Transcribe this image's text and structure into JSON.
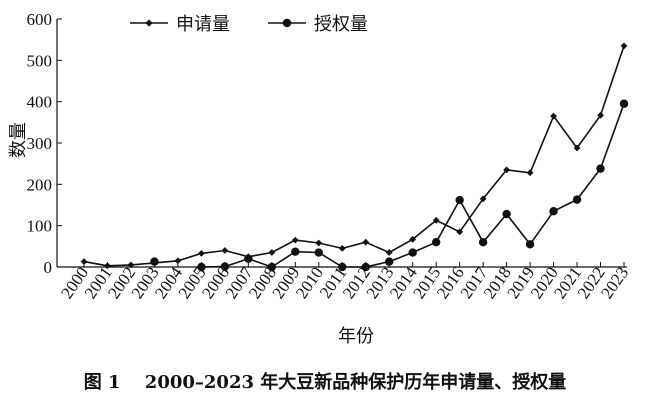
{
  "chart_data": {
    "type": "line",
    "categories": [
      "2000",
      "2001",
      "2002",
      "2003",
      "2004",
      "2005",
      "2006",
      "2007",
      "2008",
      "2009",
      "2010",
      "2011",
      "2012",
      "2013",
      "2014",
      "2015",
      "2016",
      "2017",
      "2018",
      "2019",
      "2020",
      "2021",
      "2022",
      "2023"
    ],
    "series": [
      {
        "name": "申请量",
        "marker": "diamond",
        "values": [
          13,
          3,
          5,
          10,
          15,
          33,
          40,
          25,
          35,
          65,
          58,
          45,
          60,
          35,
          67,
          113,
          85,
          165,
          235,
          228,
          365,
          288,
          367,
          535
        ]
      },
      {
        "name": "授权量",
        "marker": "circle",
        "values": [
          null,
          null,
          null,
          13,
          null,
          0,
          1,
          20,
          0,
          37,
          35,
          0,
          0,
          13,
          35,
          60,
          162,
          60,
          128,
          55,
          135,
          163,
          238,
          395
        ]
      }
    ],
    "ylabel": "数量",
    "xlabel": "年份",
    "yticks": [
      "0",
      "100",
      "200",
      "300",
      "400",
      "500",
      "600"
    ],
    "ylim": [
      0,
      600
    ],
    "legend_position": "top-left",
    "grid": false
  },
  "caption": "图 1　 2000–2023 年大豆新品种保护历年申请量、授权量"
}
